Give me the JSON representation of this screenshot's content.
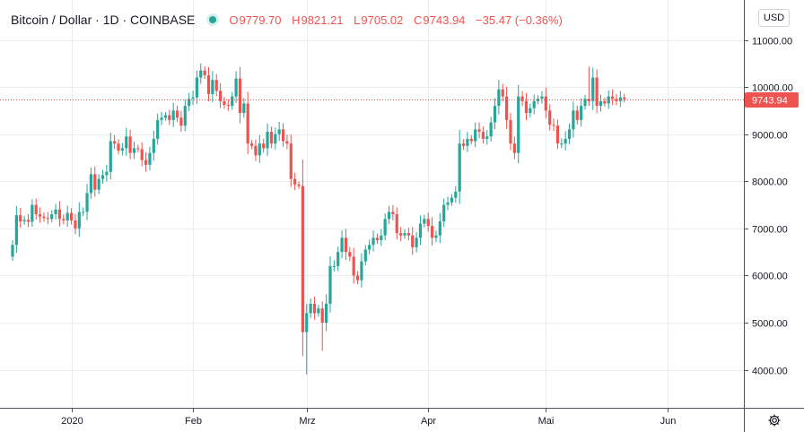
{
  "header": {
    "symbol": "Bitcoin / Dollar · 1D · COINBASE",
    "open_label": "O",
    "open": "9779.70",
    "high_label": "H",
    "high": "9821.21",
    "low_label": "L",
    "low": "9705.02",
    "close_label": "C",
    "close": "9743.94",
    "change": "−35.47 (−0.36%)"
  },
  "toolbar": {
    "currency": "USD",
    "settings_icon": "gear-icon"
  },
  "colors": {
    "up": "#26a69a",
    "down": "#ef5350",
    "grid": "#e9ecf1",
    "last_price": "#ef5350"
  },
  "chart_data": {
    "type": "candlestick",
    "y_ticks": [
      4000,
      5000,
      6000,
      7000,
      8000,
      9000,
      10000,
      11000
    ],
    "y_tick_labels": [
      "4000.00",
      "5000.00",
      "6000.00",
      "7000.00",
      "8000.00",
      "9000.00",
      "10000.00",
      "11000.00"
    ],
    "x_ticks": [
      {
        "label": "2020",
        "date": "2020-01-01"
      },
      {
        "label": "Feb",
        "date": "2020-02-01"
      },
      {
        "label": "Mrz",
        "date": "2020-03-01"
      },
      {
        "label": "Apr",
        "date": "2020-04-01"
      },
      {
        "label": "Mai",
        "date": "2020-05-01"
      },
      {
        "label": "Jun",
        "date": "2020-06-01"
      }
    ],
    "last_price": 9743.94,
    "last_price_label": "9743.94",
    "grid": true,
    "close_series": {
      "start_date": "2019-12-17",
      "values": [
        6650,
        7280,
        7150,
        7180,
        7140,
        7500,
        7300,
        7250,
        7220,
        7200,
        7300,
        7400,
        7200,
        7170,
        7330,
        7170,
        7000,
        7350,
        7350,
        7750,
        8150,
        7820,
        8050,
        8130,
        8200,
        8850,
        8800,
        8650,
        8700,
        8950,
        8600,
        8700,
        8680,
        8450,
        8350,
        8600,
        8900,
        9300,
        9350,
        9400,
        9300,
        9500,
        9350,
        9180,
        9600,
        9750,
        9780,
        10200,
        10350,
        10250,
        9850,
        10150,
        9920,
        9700,
        9620,
        9600,
        9800,
        10180,
        9450,
        9650,
        8800,
        8750,
        8550,
        8800,
        8700,
        9050,
        8800,
        9000,
        9100,
        8850,
        8800,
        8050,
        7930,
        7900,
        4800,
        5200,
        5400,
        5200,
        5300,
        5000,
        5400,
        6200,
        6200,
        6500,
        6800,
        6500,
        6400,
        6000,
        5900,
        6300,
        6550,
        6650,
        6800,
        6750,
        6850,
        7200,
        7350,
        7300,
        6900,
        6850,
        6900,
        6850,
        6600,
        6800,
        7100,
        7200,
        7050,
        6800,
        6850,
        7150,
        7500,
        7550,
        7650,
        7780,
        8800,
        8750,
        8900,
        8850,
        9100,
        9050,
        8900,
        8950,
        9250,
        9600,
        9950,
        9800,
        9300,
        8800,
        8600,
        9800,
        9700,
        9450,
        9550,
        9700,
        9750,
        9800,
        9500,
        9200,
        9180,
        8800,
        8800,
        8900,
        9100,
        9500,
        9300,
        9600,
        9750,
        9700,
        10200,
        9600,
        9700,
        9650,
        9800,
        9750,
        9700,
        9780,
        9743.94
      ]
    }
  }
}
